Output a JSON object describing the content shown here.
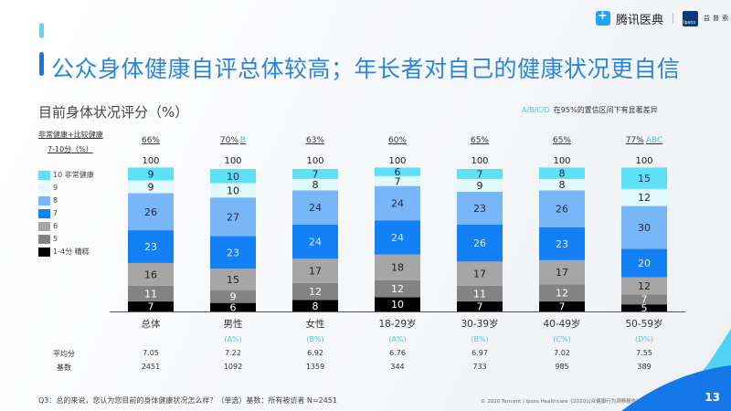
{
  "header": {
    "title": "公众身体健康自评总体较高；年长者对自己的健康状况更自信",
    "subtitle": "目前身体状况评分（%）",
    "sig_note_letters": "A/B/C/D",
    "sig_note_text": "在95%的置信区间下有显著差异",
    "logo_tencent": "腾讯医典",
    "logo_ipsos_badge": "Ipsos",
    "logo_ipsos_text": "益普索"
  },
  "legend_header": {
    "line1": "非常健康+比较健康",
    "line2": "7-10分（%）"
  },
  "chart_data": {
    "type": "bar",
    "stacked": true,
    "title": "目前身体状况评分（%）",
    "categories": [
      "总体",
      "男性",
      "女性",
      "18-29岁",
      "30-39岁",
      "40-49岁",
      "50-59岁"
    ],
    "group_labels": [
      "",
      "(A%)",
      "(B%)",
      "(A%)",
      "(B%)",
      "(C%)",
      "(D%)"
    ],
    "totals": [
      "100",
      "100",
      "100",
      "100",
      "100",
      "100",
      "100"
    ],
    "top_box": [
      "66%",
      "70%",
      "63%",
      "60%",
      "65%",
      "65%",
      "77%"
    ],
    "top_box_sig": [
      "",
      "B",
      "",
      "",
      "",
      "",
      "ABC"
    ],
    "series": [
      {
        "name": "1-4分 糟糕",
        "color": "#000000",
        "label_color": "#ffffff",
        "values": [
          7,
          6,
          8,
          10,
          7,
          7,
          5
        ]
      },
      {
        "name": "5",
        "color": "#838383",
        "label_color": "#ffffff",
        "values": [
          11,
          9,
          12,
          12,
          11,
          12,
          7
        ]
      },
      {
        "name": "6",
        "color": "#a6a6a6",
        "label_color": "#222222",
        "values": [
          16,
          15,
          17,
          18,
          17,
          17,
          12
        ]
      },
      {
        "name": "7",
        "color": "#1480f5",
        "label_color": "#d9ecff",
        "values": [
          23,
          23,
          24,
          24,
          26,
          23,
          20
        ]
      },
      {
        "name": "8",
        "color": "#78b6f8",
        "label_color": "#1a2a4a",
        "values": [
          26,
          27,
          24,
          24,
          23,
          26,
          30
        ]
      },
      {
        "name": "9",
        "color": "#e1f8fc",
        "label_color": "#222222",
        "values": [
          9,
          10,
          8,
          7,
          9,
          8,
          12
        ]
      },
      {
        "name": "10 非常健康",
        "color": "#5ee0f6",
        "label_color": "#1a2a4a",
        "values": [
          9,
          10,
          7,
          6,
          7,
          8,
          15
        ]
      }
    ],
    "ylim": [
      0,
      100
    ],
    "legend_position": "left"
  },
  "stats": {
    "avg_label": "平均分",
    "base_label": "基数",
    "averages": [
      "7.05",
      "7.22",
      "6.92",
      "6.76",
      "6.97",
      "7.02",
      "7.55"
    ],
    "bases": [
      "2451",
      "1092",
      "1359",
      "344",
      "733",
      "985",
      "389"
    ]
  },
  "footer": {
    "question": "Q3：总的来说，您认为您目前的身体健康状况怎么样？（单选）基数：所有被访者 N=2451",
    "copyright": "© 2020 Tencent / Ipsos Healthcare《2020公众健康行为洞察报告》",
    "page_number": "13"
  }
}
